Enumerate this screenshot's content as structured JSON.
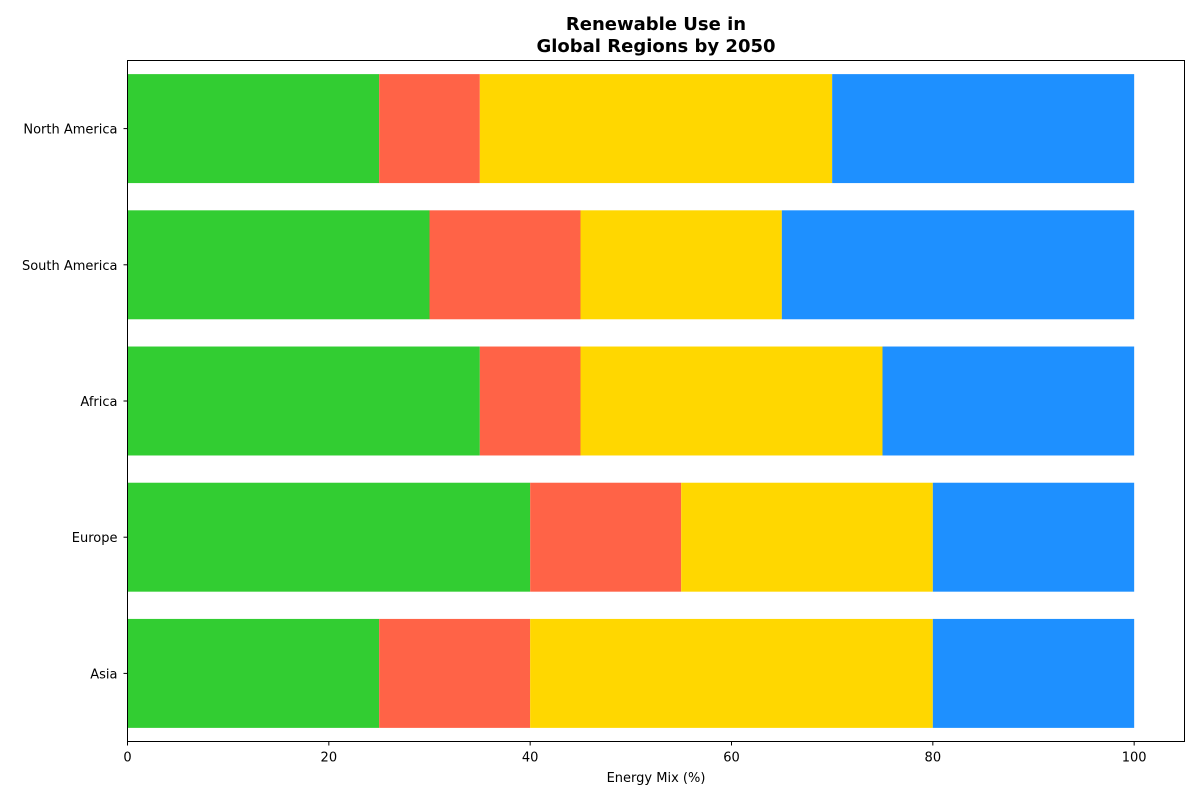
{
  "chart_data": {
    "type": "bar",
    "orientation": "horizontal",
    "stacked": true,
    "title": [
      "Renewable Use in",
      "Global Regions by 2050"
    ],
    "xlabel": "Energy Mix (%)",
    "ylabel": "",
    "xlim": [
      0,
      105
    ],
    "x_ticks": [
      0,
      20,
      40,
      60,
      80,
      100
    ],
    "categories": [
      "North America",
      "South America",
      "Africa",
      "Europe",
      "Asia"
    ],
    "series": [
      {
        "color": "#32CD32",
        "values": [
          25,
          30,
          35,
          40,
          25
        ]
      },
      {
        "color": "#FF6347",
        "values": [
          10,
          15,
          10,
          15,
          15
        ]
      },
      {
        "color": "#FFD700",
        "values": [
          35,
          20,
          30,
          25,
          40
        ]
      },
      {
        "color": "#1E90FF",
        "values": [
          30,
          35,
          25,
          20,
          20
        ]
      }
    ],
    "grid": false,
    "legend": "none"
  }
}
